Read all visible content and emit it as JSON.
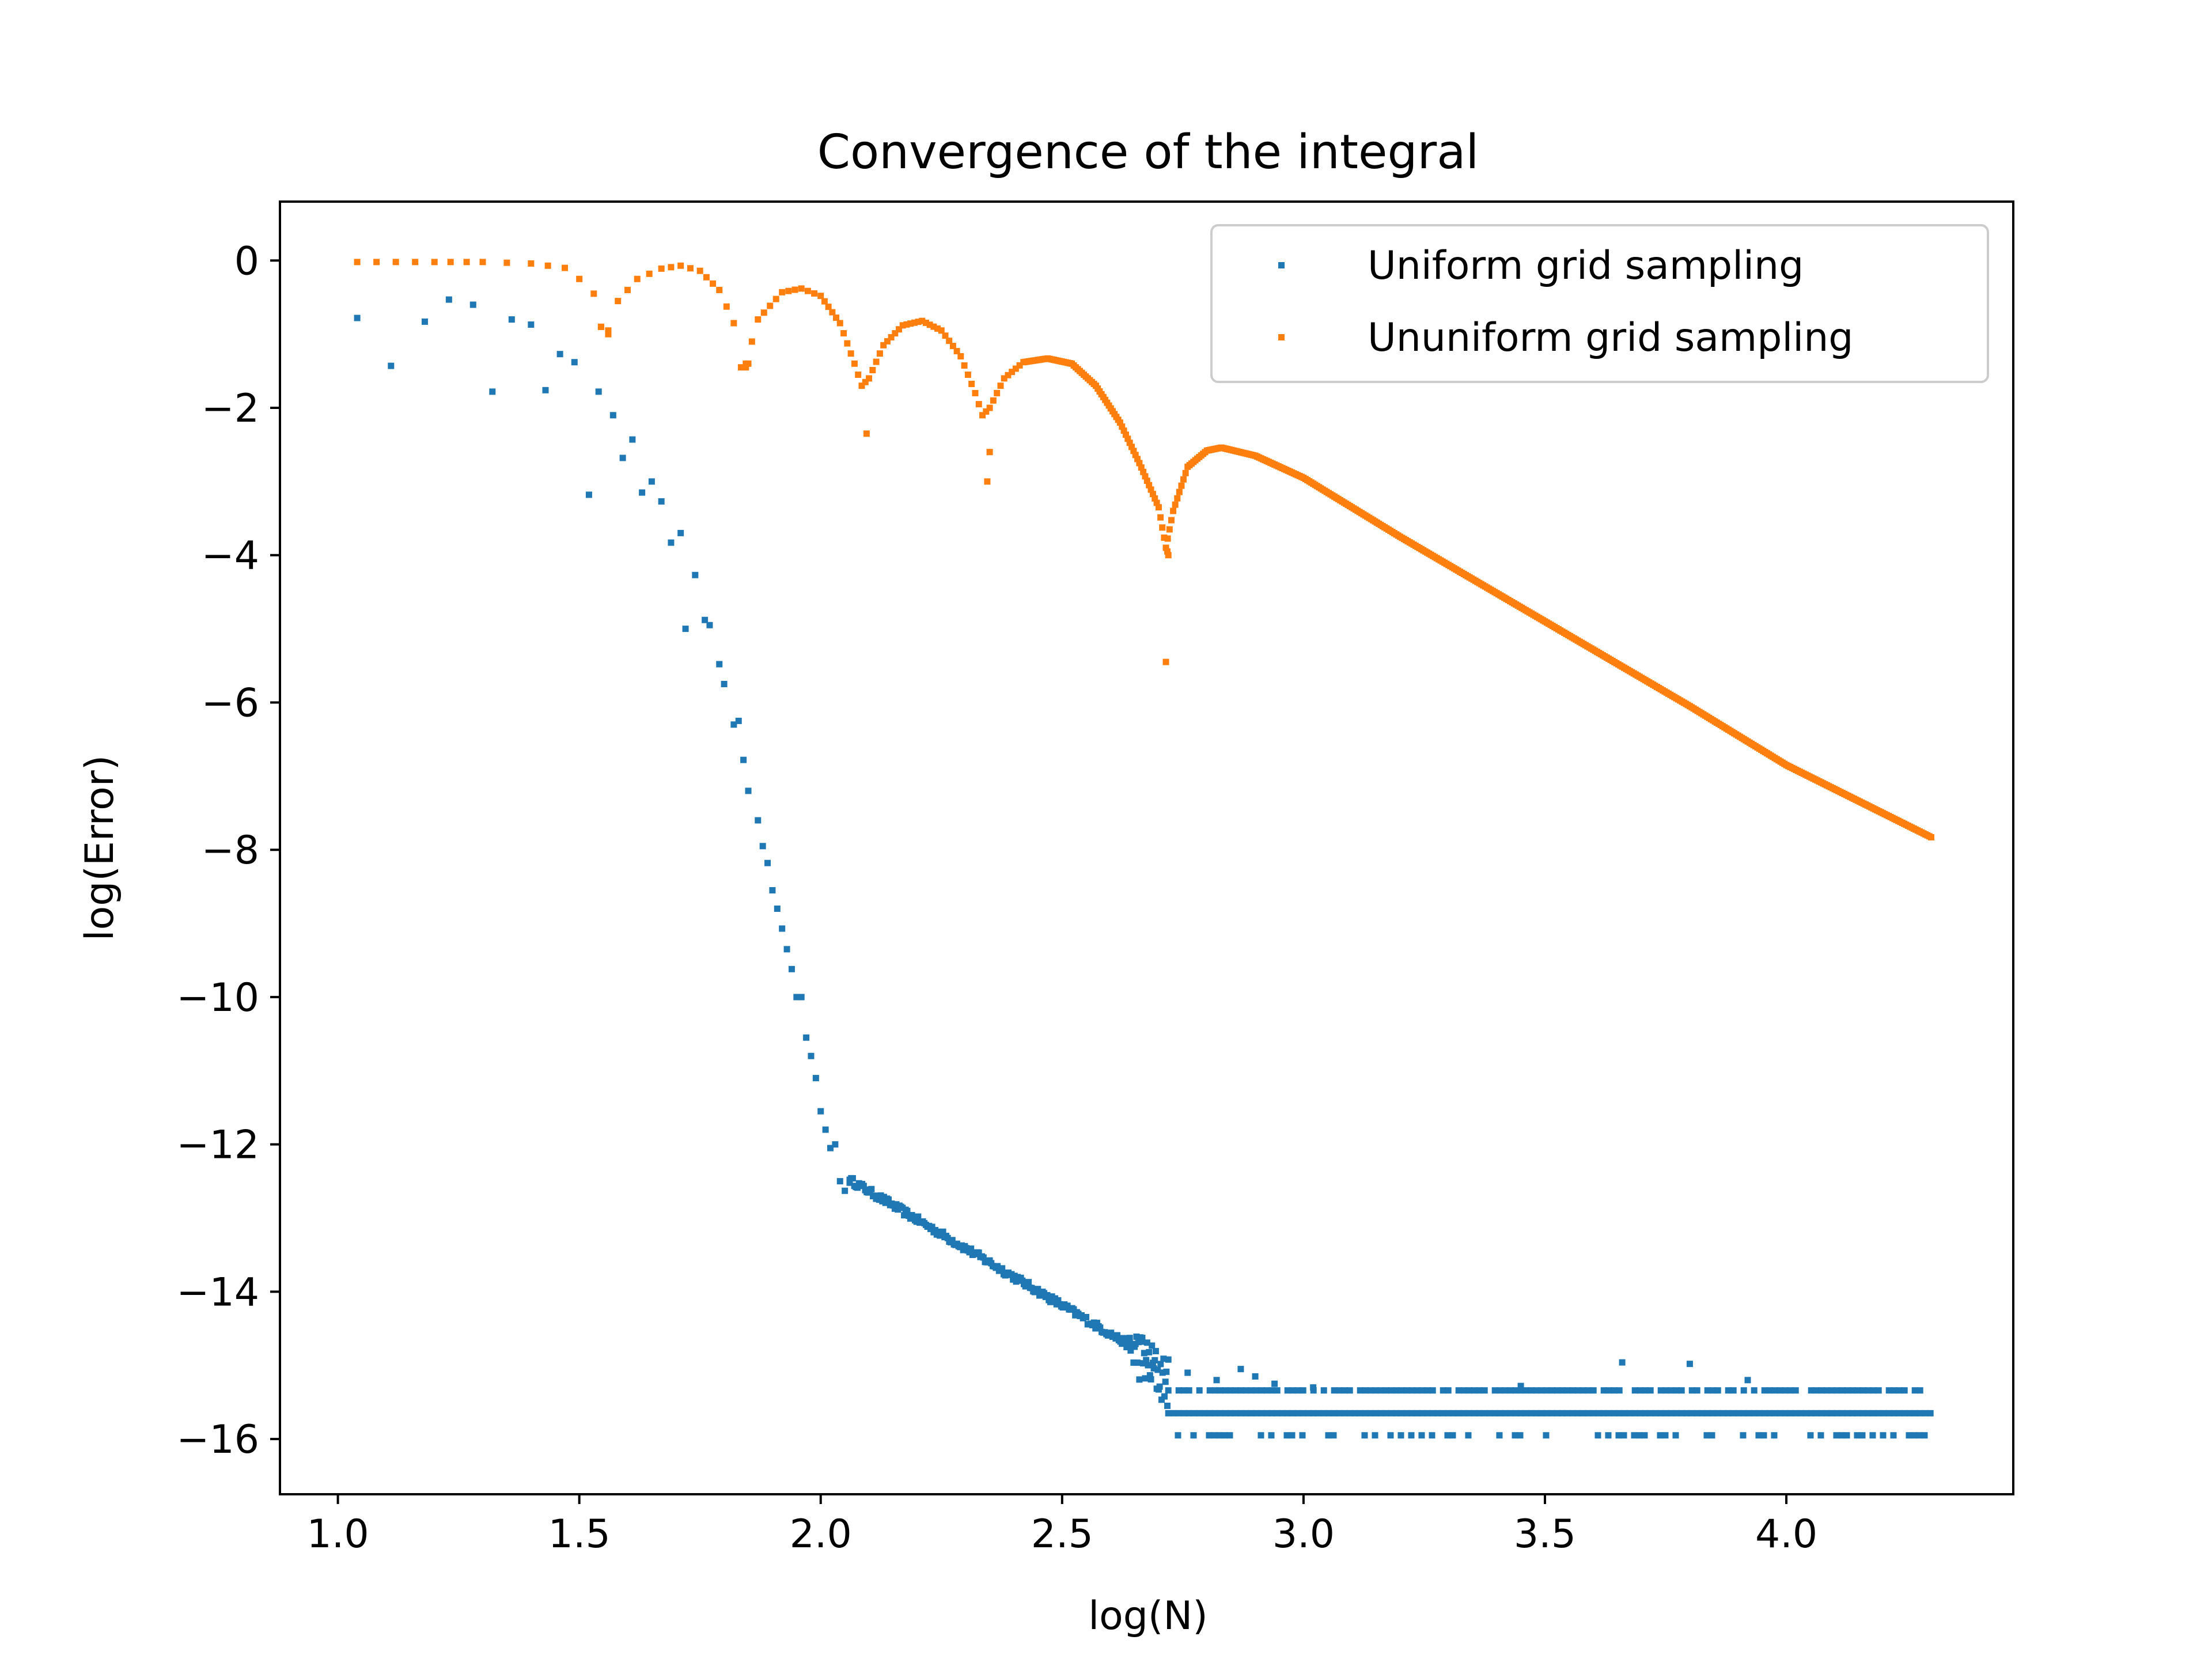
{
  "chart_data": {
    "type": "scatter",
    "title": "Convergence of the integral",
    "xlabel": "log(N)",
    "ylabel": "log(Error)",
    "xlim": [
      0.88,
      4.47
    ],
    "ylim": [
      -16.75,
      0.8
    ],
    "xticks": [
      1.0,
      1.5,
      2.0,
      2.5,
      3.0,
      3.5,
      4.0
    ],
    "xtick_labels": [
      "1.0",
      "1.5",
      "2.0",
      "2.5",
      "3.0",
      "3.5",
      "4.0"
    ],
    "yticks": [
      0,
      -2,
      -4,
      -6,
      -8,
      -10,
      -12,
      -14,
      -16
    ],
    "ytick_labels": [
      "0",
      "−2",
      "−4",
      "−6",
      "−8",
      "−10",
      "−12",
      "−14",
      "−16"
    ],
    "grid": false,
    "legend_position": "top-right",
    "series": [
      {
        "name": "Uniform grid sampling",
        "color": "#1f77b4",
        "points": [
          [
            1.04,
            -0.78
          ],
          [
            1.11,
            -1.43
          ],
          [
            1.18,
            -0.83
          ],
          [
            1.23,
            -0.53
          ],
          [
            1.28,
            -0.6
          ],
          [
            1.32,
            -1.78
          ],
          [
            1.36,
            -0.8
          ],
          [
            1.4,
            -0.87
          ],
          [
            1.43,
            -1.76
          ],
          [
            1.46,
            -1.27
          ],
          [
            1.49,
            -1.38
          ],
          [
            1.52,
            -3.18
          ],
          [
            1.54,
            -1.78
          ],
          [
            1.57,
            -2.1
          ],
          [
            1.59,
            -2.68
          ],
          [
            1.61,
            -2.43
          ],
          [
            1.63,
            -3.15
          ],
          [
            1.65,
            -3.0
          ],
          [
            1.67,
            -3.27
          ],
          [
            1.69,
            -3.83
          ],
          [
            1.71,
            -3.7
          ],
          [
            1.72,
            -5.0
          ],
          [
            1.74,
            -4.27
          ],
          [
            1.76,
            -4.88
          ],
          [
            1.77,
            -4.95
          ],
          [
            1.79,
            -5.48
          ],
          [
            1.8,
            -5.75
          ],
          [
            1.82,
            -6.3
          ],
          [
            1.83,
            -6.25
          ],
          [
            1.84,
            -6.78
          ],
          [
            1.85,
            -7.2
          ],
          [
            1.87,
            -7.6
          ],
          [
            1.88,
            -7.95
          ],
          [
            1.89,
            -8.18
          ],
          [
            1.9,
            -8.55
          ],
          [
            1.91,
            -8.8
          ],
          [
            1.92,
            -9.07
          ],
          [
            1.93,
            -9.35
          ],
          [
            1.94,
            -9.62
          ],
          [
            1.95,
            -10.0
          ],
          [
            1.96,
            -10.0
          ],
          [
            1.97,
            -10.55
          ],
          [
            1.98,
            -10.8
          ],
          [
            1.99,
            -11.1
          ],
          [
            2.0,
            -11.55
          ],
          [
            2.01,
            -11.8
          ],
          [
            2.02,
            -12.05
          ],
          [
            2.03,
            -12.0
          ],
          [
            2.04,
            -12.5
          ],
          [
            2.05,
            -12.63
          ],
          [
            2.06,
            -12.48
          ]
        ],
        "trend_segments": [
          {
            "x0": 2.06,
            "y0": -12.48,
            "x1": 2.64,
            "y1": -14.73,
            "n": 180,
            "jitter": 0.05
          },
          {
            "x0": 2.64,
            "y0": -14.73,
            "x1": 2.72,
            "y1": -15.25,
            "n": 40,
            "jitter": 0.35
          }
        ],
        "floor_levels": [
          {
            "y": -15.34,
            "x0": 2.72,
            "x1": 4.3,
            "density": 0.8
          },
          {
            "y": -15.65,
            "x0": 2.72,
            "x1": 4.3,
            "density": 1.0
          },
          {
            "y": -15.95,
            "x0": 2.74,
            "x1": 4.3,
            "density": 0.45
          }
        ],
        "floor_outliers": [
          [
            2.76,
            -15.1
          ],
          [
            2.82,
            -15.2
          ],
          [
            2.87,
            -15.05
          ],
          [
            2.9,
            -15.15
          ],
          [
            2.94,
            -15.25
          ],
          [
            3.02,
            -15.3
          ],
          [
            3.45,
            -15.28
          ],
          [
            3.66,
            -14.96
          ],
          [
            3.8,
            -14.98
          ],
          [
            3.92,
            -15.2
          ]
        ]
      },
      {
        "name": "Ununiform grid sampling",
        "color": "#ff7f0e",
        "curve": [
          [
            1.04,
            -0.02
          ],
          [
            1.2,
            -0.02
          ],
          [
            1.3,
            -0.02
          ],
          [
            1.4,
            -0.04
          ],
          [
            1.47,
            -0.1
          ],
          [
            1.5,
            -0.25
          ],
          [
            1.53,
            -0.45
          ],
          [
            1.545,
            -0.9
          ],
          [
            1.56,
            -0.95
          ],
          [
            1.58,
            -0.55
          ],
          [
            1.62,
            -0.25
          ],
          [
            1.67,
            -0.11
          ],
          [
            1.71,
            -0.07
          ],
          [
            1.75,
            -0.14
          ],
          [
            1.79,
            -0.4
          ],
          [
            1.82,
            -0.85
          ],
          [
            1.835,
            -1.45
          ],
          [
            1.845,
            -1.4
          ],
          [
            1.87,
            -0.8
          ],
          [
            1.92,
            -0.43
          ],
          [
            1.96,
            -0.38
          ],
          [
            2.0,
            -0.48
          ],
          [
            2.04,
            -0.85
          ],
          [
            2.07,
            -1.4
          ],
          [
            2.085,
            -1.7
          ],
          [
            2.1,
            -1.6
          ],
          [
            2.13,
            -1.15
          ],
          [
            2.17,
            -0.88
          ],
          [
            2.21,
            -0.82
          ],
          [
            2.25,
            -0.95
          ],
          [
            2.29,
            -1.3
          ],
          [
            2.32,
            -1.8
          ],
          [
            2.335,
            -2.1
          ],
          [
            2.35,
            -2.0
          ],
          [
            2.38,
            -1.6
          ],
          [
            2.42,
            -1.38
          ],
          [
            2.47,
            -1.33
          ],
          [
            2.52,
            -1.4
          ],
          [
            2.57,
            -1.7
          ],
          [
            2.62,
            -2.2
          ],
          [
            2.66,
            -2.75
          ],
          [
            2.7,
            -3.35
          ],
          [
            2.715,
            -3.9
          ],
          [
            2.73,
            -3.4
          ],
          [
            2.76,
            -2.8
          ],
          [
            2.8,
            -2.58
          ],
          [
            2.83,
            -2.54
          ],
          [
            2.9,
            -2.65
          ],
          [
            3.0,
            -2.95
          ],
          [
            3.2,
            -3.75
          ],
          [
            3.5,
            -4.9
          ],
          [
            3.8,
            -6.05
          ],
          [
            4.0,
            -6.85
          ],
          [
            4.3,
            -7.83
          ]
        ],
        "dip_points": [
          [
            1.545,
            -0.9
          ],
          [
            1.56,
            -1.0
          ],
          [
            1.845,
            -1.45
          ],
          [
            1.85,
            -1.4
          ],
          [
            2.095,
            -2.35
          ],
          [
            2.345,
            -3.0
          ],
          [
            2.35,
            -2.6
          ],
          [
            2.715,
            -5.45
          ],
          [
            2.72,
            -4.0
          ],
          [
            2.718,
            -3.95
          ]
        ]
      }
    ]
  }
}
